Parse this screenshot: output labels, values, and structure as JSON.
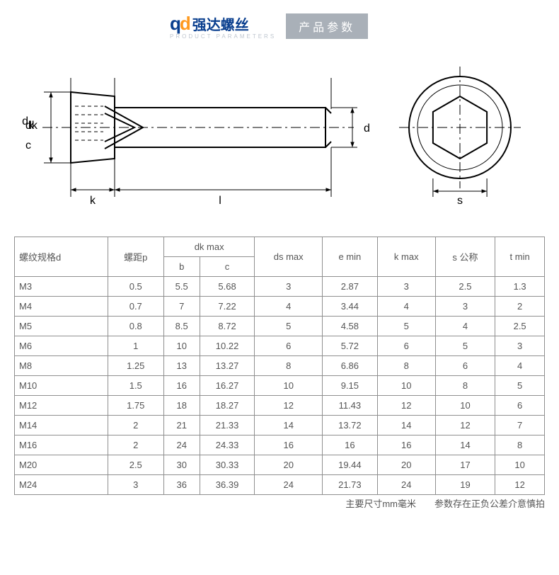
{
  "header": {
    "logo_q": "q",
    "logo_d": "d",
    "logo_text": "强达螺丝",
    "logo_sub": "PRODUCT   PARAMETERS",
    "tab_label": "产品参数"
  },
  "diagram": {
    "stroke": "#000000",
    "stroke_width": 2,
    "thin_width": 1,
    "labels": {
      "dk": "dk",
      "c": "c",
      "k": "k",
      "l": "l",
      "d": "d",
      "s": "s"
    },
    "label_fontsize": 16
  },
  "table": {
    "headers": {
      "spec": "螺纹规格d",
      "pitch": "螺距p",
      "dk_group": "dk max",
      "dk_b": "b",
      "dk_c": "c",
      "ds": "ds max",
      "e": "e min",
      "k": "k max",
      "s": "s 公称",
      "t": "t min"
    },
    "col_widths": [
      "86",
      "70",
      "64",
      "64",
      "80",
      "80",
      "80",
      "80",
      "80"
    ],
    "rows": [
      {
        "spec": "M3",
        "p": "0.5",
        "b": "5.5",
        "c": "5.68",
        "ds": "3",
        "e": "2.87",
        "k": "3",
        "s": "2.5",
        "t": "1.3"
      },
      {
        "spec": "M4",
        "p": "0.7",
        "b": "7",
        "c": "7.22",
        "ds": "4",
        "e": "3.44",
        "k": "4",
        "s": "3",
        "t": "2"
      },
      {
        "spec": "M5",
        "p": "0.8",
        "b": "8.5",
        "c": "8.72",
        "ds": "5",
        "e": "4.58",
        "k": "5",
        "s": "4",
        "t": "2.5"
      },
      {
        "spec": "M6",
        "p": "1",
        "b": "10",
        "c": "10.22",
        "ds": "6",
        "e": "5.72",
        "k": "6",
        "s": "5",
        "t": "3"
      },
      {
        "spec": "M8",
        "p": "1.25",
        "b": "13",
        "c": "13.27",
        "ds": "8",
        "e": "6.86",
        "k": "8",
        "s": "6",
        "t": "4"
      },
      {
        "spec": "M10",
        "p": "1.5",
        "b": "16",
        "c": "16.27",
        "ds": "10",
        "e": "9.15",
        "k": "10",
        "s": "8",
        "t": "5"
      },
      {
        "spec": "M12",
        "p": "1.75",
        "b": "18",
        "c": "18.27",
        "ds": "12",
        "e": "11.43",
        "k": "12",
        "s": "10",
        "t": "6"
      },
      {
        "spec": "M14",
        "p": "2",
        "b": "21",
        "c": "21.33",
        "ds": "14",
        "e": "13.72",
        "k": "14",
        "s": "12",
        "t": "7"
      },
      {
        "spec": "M16",
        "p": "2",
        "b": "24",
        "c": "24.33",
        "ds": "16",
        "e": "16",
        "k": "16",
        "s": "14",
        "t": "8"
      },
      {
        "spec": "M20",
        "p": "2.5",
        "b": "30",
        "c": "30.33",
        "ds": "20",
        "e": "19.44",
        "k": "20",
        "s": "17",
        "t": "10"
      },
      {
        "spec": "M24",
        "p": "3",
        "b": "36",
        "c": "36.39",
        "ds": "24",
        "e": "21.73",
        "k": "24",
        "s": "19",
        "t": "12"
      }
    ]
  },
  "footnote": "主要尺寸mm毫米　　参数存在正负公差介意慎拍"
}
